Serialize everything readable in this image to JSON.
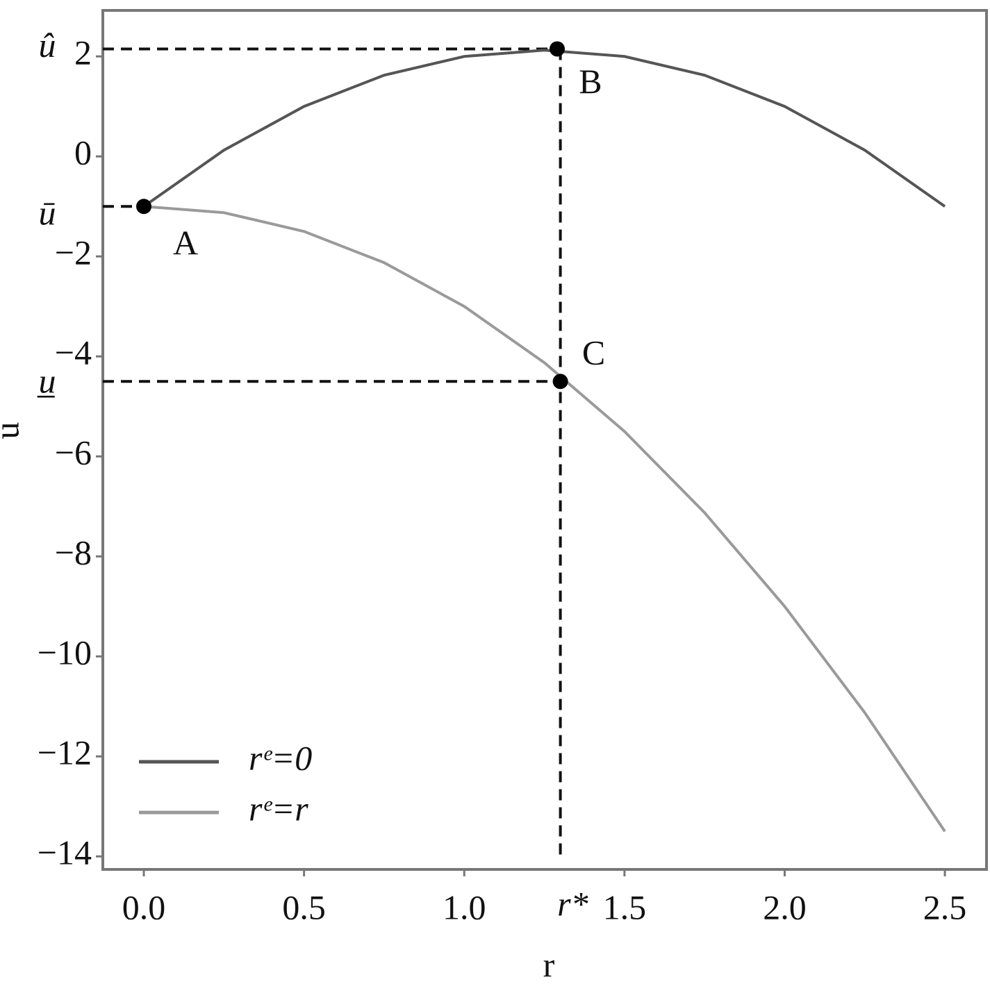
{
  "chart_data": {
    "type": "line",
    "x_label": "r",
    "y_label": "u",
    "x": [
      0,
      0.25,
      0.5,
      0.75,
      1,
      1.25,
      1.5,
      1.75,
      2,
      2.25,
      2.5
    ],
    "series": [
      {
        "name": "rᵉ=0",
        "color": "#555555",
        "values": [
          -1,
          0.125,
          1,
          1.625,
          2,
          2.125,
          2,
          1.625,
          1,
          0.125,
          -1
        ]
      },
      {
        "name": "rᵉ=r",
        "color": "#9a9a9a",
        "values": [
          -1,
          -1.125,
          -1.5,
          -2.125,
          -3,
          -4.125,
          -5.5,
          -7.125,
          -9,
          -11.125,
          -13.5
        ]
      }
    ],
    "xlim": [
      -0.128,
      2.63
    ],
    "ylim": [
      -14.26,
      2.92
    ],
    "xticks": [
      {
        "value": 0,
        "label": "0.0"
      },
      0.5,
      {
        "value": 1,
        "label": "1.0"
      },
      1.5,
      {
        "value": 2,
        "label": "2.0"
      },
      2.5
    ],
    "yticks": [
      {
        "value": -14,
        "label": "−14"
      },
      {
        "value": -12,
        "label": "−12"
      },
      {
        "value": -10,
        "label": "−10"
      },
      {
        "value": -8,
        "label": "−8"
      },
      {
        "value": -6,
        "label": "−6"
      },
      {
        "value": -4,
        "label": "−4"
      },
      {
        "value": -2,
        "label": "−2"
      },
      0,
      2
    ],
    "legend": "lower left",
    "points": [
      {
        "label": "A",
        "x": 0,
        "y": -1
      },
      {
        "label": "B",
        "x": 1.29,
        "y": 2.15
      },
      {
        "label": "C",
        "x": 1.3,
        "y": -4.5
      }
    ],
    "y_markers": [
      {
        "label": "û",
        "y": 2.15
      },
      {
        "label": "ū",
        "y": -1
      },
      {
        "label": "u̲",
        "y": -4.5
      }
    ],
    "x_markers": [
      {
        "label": "r*",
        "x": 1.3
      }
    ]
  }
}
